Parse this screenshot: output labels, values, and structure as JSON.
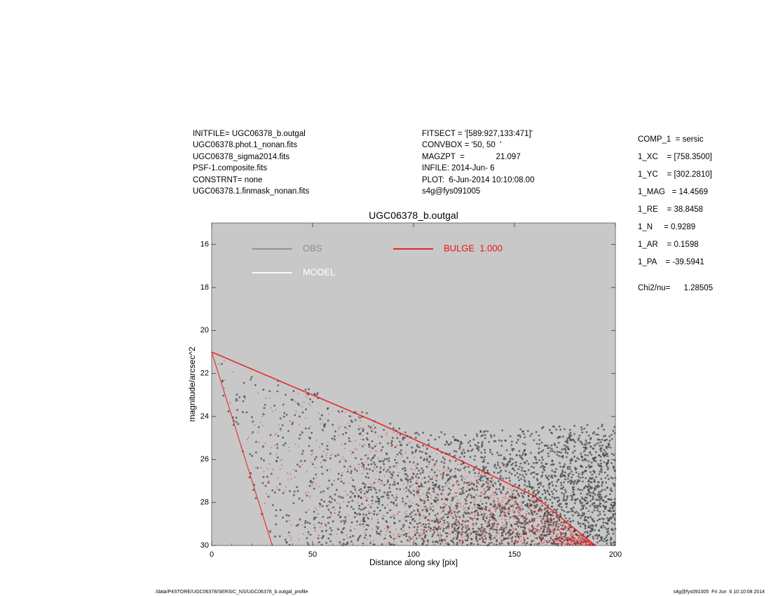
{
  "header": {
    "left_lines": [
      "INITFILE= UGC06378_b.outgal",
      "UGC06378.phot.1_nonan.fits",
      "UGC06378_sigma2014.fits",
      "PSF-1.composite.fits",
      "CONSTRNT= none",
      "UGC06378.1.finmask_nonan.fits"
    ],
    "mid_lines": [
      "FITSECT = '[589:927,133:471]'",
      "CONVBOX = '50, 50  '",
      "MAGZPT  =              21.097",
      "INFILE: 2014-Jun- 6",
      "PLOT:  6-Jun-2014 10:10:08.00",
      "s4g@fys091005"
    ]
  },
  "components": {
    "rows": [
      "COMP_1  = sersic",
      "1_XC    = [758.3500]",
      "1_YC    = [302.2810]",
      "1_MAG   = 14.4569",
      "1_RE    = 38.8458",
      "1_N     = 0.9289",
      "1_AR    = 0.1598",
      "1_PA    = -39.5941"
    ],
    "chi2_label": "Chi2/nu=",
    "chi2_value": "1.28505"
  },
  "footer": {
    "left": "/data/P4STORE/UGC06378/SERSIC_NS/UGC06378_b.outgal_profile",
    "right": "s4g@fys091005  Fri Jun  6 10:10:08 2014"
  },
  "chart_data": {
    "type": "scatter",
    "title": "UGC06378_b.outgal",
    "xlabel": "Distance along sky [pix]",
    "ylabel": "magnitude/arcsec^2",
    "xlim": [
      0,
      200
    ],
    "ylim": [
      30,
      15
    ],
    "y_inverted": true,
    "x_ticks": [
      0,
      50,
      100,
      150,
      200
    ],
    "y_ticks": [
      16,
      18,
      20,
      22,
      24,
      26,
      28,
      30
    ],
    "grid": false,
    "background_color": "#c8c8c8",
    "legend": [
      {
        "name": "OBS",
        "color": "#8c8c8c"
      },
      {
        "name": "MODEL",
        "color": "#ffffff"
      },
      {
        "name": "BULGE  1.000",
        "color": "#ee1111"
      }
    ],
    "series": [
      {
        "name": "OBS",
        "color": "#454545",
        "kind": "scatter",
        "approx_extent": {
          "lower_edge": [
            [
              0,
              21.0
            ],
            [
              10,
              21.2
            ],
            [
              20,
              21.6
            ],
            [
              40,
              22.4
            ],
            [
              60,
              23.1
            ],
            [
              80,
              23.9
            ],
            [
              100,
              24.7
            ],
            [
              140,
              24.6
            ],
            [
              200,
              24.3
            ]
          ],
          "upper_edge": [
            [
              0,
              21.2
            ],
            [
              10,
              24.5
            ],
            [
              20,
              27.5
            ],
            [
              30,
              30.0
            ],
            [
              60,
              30.0
            ],
            [
              100,
              30.0
            ],
            [
              150,
              30.0
            ],
            [
              200,
              30.0
            ]
          ]
        }
      },
      {
        "name": "BULGE  1.000",
        "color": "#ee1111",
        "kind": "scatter",
        "approx_extent": {
          "lower_edge": [
            [
              0,
              21.0
            ],
            [
              40,
              22.6
            ],
            [
              80,
              24.2
            ],
            [
              120,
              25.9
            ],
            [
              160,
              27.7
            ],
            [
              190,
              30.0
            ]
          ],
          "upper_edge": [
            [
              0,
              21.0
            ],
            [
              10,
              24.0
            ],
            [
              20,
              27.0
            ],
            [
              30,
              30.0
            ]
          ]
        }
      }
    ]
  }
}
